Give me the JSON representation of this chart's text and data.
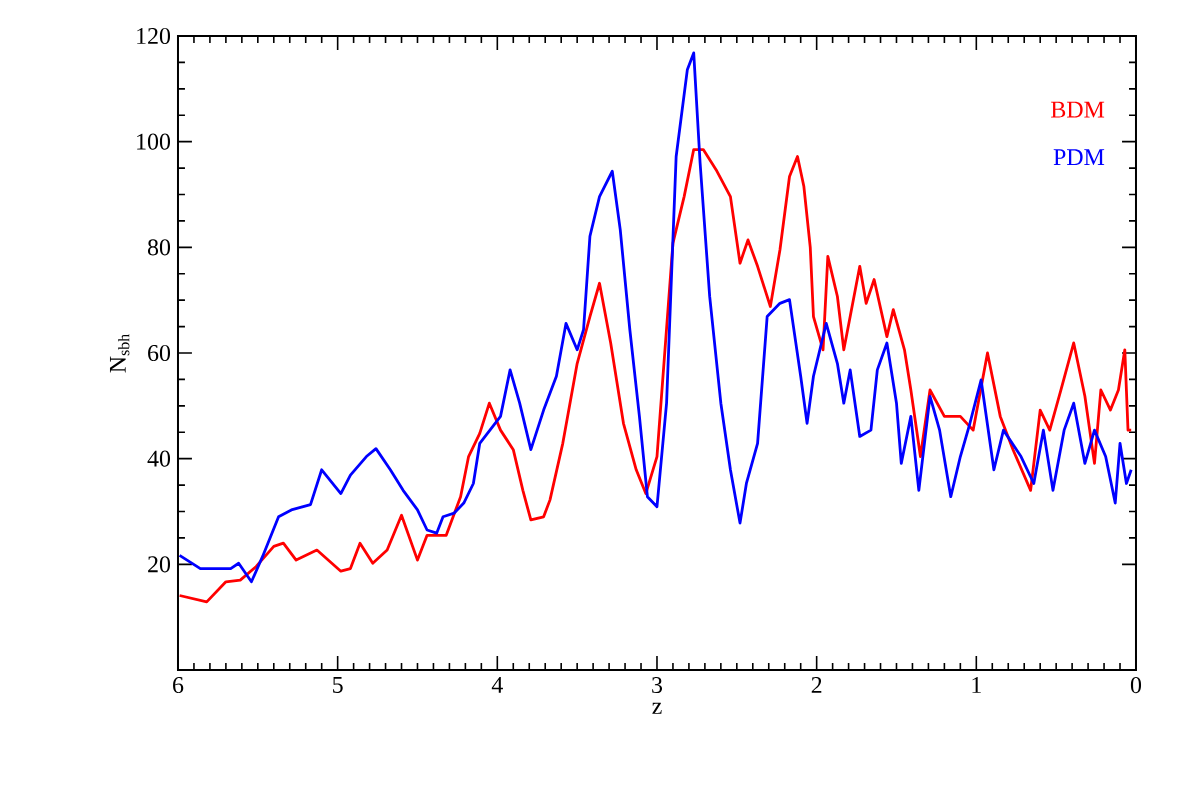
{
  "chart_data": {
    "type": "line",
    "xlabel": "z",
    "ylabel": "N$_{sbh}$",
    "xlim": [
      6,
      0
    ],
    "ylim": [
      0,
      120
    ],
    "xticks": [
      6,
      5,
      4,
      3,
      2,
      1,
      0
    ],
    "yticks": [
      20,
      40,
      60,
      80,
      100,
      120
    ],
    "legend": "top right",
    "grid": false,
    "series": [
      {
        "name": "BDM",
        "color": "#ff0000",
        "x": [
          5.99,
          5.82,
          5.7,
          5.61,
          5.51,
          5.4,
          5.34,
          5.26,
          5.13,
          4.98,
          4.92,
          4.86,
          4.78,
          4.69,
          4.6,
          4.5,
          4.44,
          4.32,
          4.23,
          4.18,
          4.11,
          4.05,
          3.98,
          3.9,
          3.84,
          3.79,
          3.71,
          3.67,
          3.59,
          3.5,
          3.42,
          3.36,
          3.29,
          3.21,
          3.13,
          3.07,
          3.0,
          2.9,
          2.83,
          2.77,
          2.71,
          2.63,
          2.54,
          2.48,
          2.43,
          2.37,
          2.29,
          2.23,
          2.17,
          2.12,
          2.08,
          2.04,
          2.02,
          1.96,
          1.93,
          1.87,
          1.83,
          1.79,
          1.73,
          1.69,
          1.64,
          1.56,
          1.52,
          1.45,
          1.41,
          1.35,
          1.29,
          1.2,
          1.1,
          1.02,
          0.93,
          0.85,
          0.77,
          0.66,
          0.6,
          0.54,
          0.47,
          0.39,
          0.32,
          0.26,
          0.22,
          0.16,
          0.11,
          0.07,
          0.05,
          0.03
        ],
        "values": [
          14.1,
          12.9,
          16.7,
          17,
          19.6,
          23.4,
          24,
          20.8,
          22.7,
          18.7,
          19.2,
          24,
          20.2,
          22.7,
          29.3,
          20.8,
          25.5,
          25.5,
          32.8,
          40.4,
          44.8,
          50.5,
          45.4,
          41.7,
          34,
          28.4,
          29,
          32.2,
          42.9,
          58,
          66.9,
          73.2,
          61.9,
          46.7,
          37.9,
          33.4,
          40.4,
          80.8,
          89.6,
          98.5,
          98.5,
          94.7,
          89.6,
          77,
          81.4,
          76.4,
          68.8,
          79.5,
          93.4,
          97.2,
          91.5,
          80,
          66.9,
          60.6,
          78.3,
          70.7,
          60.6,
          66.9,
          76.4,
          69.4,
          73.9,
          63.1,
          68.2,
          60.6,
          53,
          40.4,
          53,
          48,
          48,
          45.4,
          60,
          48,
          41.7,
          34,
          49.2,
          45.4,
          53,
          61.9,
          51.8,
          39.1,
          53,
          49.2,
          53,
          60.6,
          45.4,
          45.4
        ]
      },
      {
        "name": "PDM",
        "color": "#0000ff",
        "x": [
          5.99,
          5.86,
          5.67,
          5.62,
          5.54,
          5.47,
          5.37,
          5.29,
          5.17,
          5.1,
          4.98,
          4.92,
          4.82,
          4.76,
          4.67,
          4.59,
          4.5,
          4.44,
          4.38,
          4.34,
          4.27,
          4.21,
          4.15,
          4.11,
          3.98,
          3.92,
          3.86,
          3.79,
          3.71,
          3.63,
          3.57,
          3.5,
          3.46,
          3.42,
          3.36,
          3.28,
          3.23,
          3.17,
          3.11,
          3.06,
          3.0,
          2.94,
          2.88,
          2.81,
          2.77,
          2.73,
          2.67,
          2.6,
          2.54,
          2.48,
          2.44,
          2.37,
          2.31,
          2.23,
          2.17,
          2.1,
          2.06,
          2.02,
          1.94,
          1.87,
          1.83,
          1.79,
          1.73,
          1.66,
          1.62,
          1.56,
          1.5,
          1.47,
          1.41,
          1.36,
          1.29,
          1.23,
          1.16,
          1.1,
          1.04,
          0.97,
          0.89,
          0.83,
          0.72,
          0.64,
          0.58,
          0.52,
          0.45,
          0.39,
          0.32,
          0.26,
          0.19,
          0.13,
          0.1,
          0.06,
          0.03
        ],
        "values": [
          21.7,
          19.2,
          19.2,
          20.2,
          16.7,
          21.5,
          29,
          30.3,
          31.3,
          37.9,
          33.4,
          36.9,
          40.4,
          41.9,
          37.9,
          34,
          30.3,
          26.5,
          25.9,
          29,
          29.7,
          31.6,
          35.3,
          42.9,
          48,
          56.8,
          50.5,
          41.7,
          49.2,
          55.6,
          65.6,
          60.6,
          64.4,
          82.1,
          89.6,
          94.4,
          83.3,
          64.4,
          48,
          32.8,
          30.9,
          50.5,
          97.2,
          113.6,
          116.8,
          96,
          70.7,
          50.5,
          37.9,
          27.8,
          35.3,
          42.9,
          66.9,
          69.4,
          70.1,
          55.6,
          46.7,
          55.6,
          65.6,
          58,
          50.5,
          56.8,
          44.2,
          45.4,
          56.8,
          61.9,
          50.5,
          39.1,
          48,
          34,
          51.8,
          45.4,
          32.8,
          40.4,
          46.7,
          54.9,
          37.9,
          45.4,
          40.4,
          35.3,
          45.4,
          34,
          45.4,
          50.5,
          39.1,
          45.4,
          40.4,
          31.6,
          42.9,
          35.3,
          37.9
        ]
      }
    ]
  }
}
